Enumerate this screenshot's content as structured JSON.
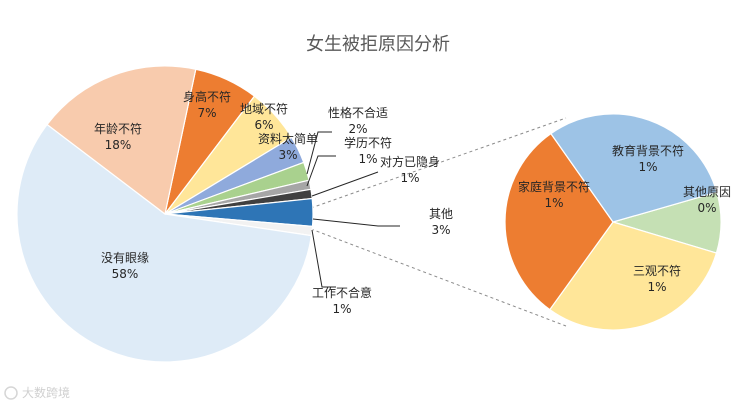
{
  "chart_data": {
    "type": "pie",
    "subtype": "bar-of-pie",
    "title": "女生被拒原因分析",
    "main_pie": {
      "slices": [
        {
          "label": "身高不符",
          "value": 7,
          "value_label": "7%",
          "color": "#ed7d31"
        },
        {
          "label": "地域不符",
          "value": 6,
          "value_label": "6%",
          "color": "#ffe699"
        },
        {
          "label": "资料太简单",
          "value": 3,
          "value_label": "3%",
          "color": "#8faadc"
        },
        {
          "label": "性格不合适",
          "value": 2,
          "value_label": "2%",
          "color": "#a9d18e"
        },
        {
          "label": "学历不符",
          "value": 1,
          "value_label": "1%",
          "color": "#a6a6a6"
        },
        {
          "label": "对方已隐身",
          "value": 1,
          "value_label": "1%",
          "color": "#404040"
        },
        {
          "label": "其他",
          "value": 3,
          "value_label": "3%",
          "color": "#2e75b6"
        },
        {
          "label": "工作不合意",
          "value": 1,
          "value_label": "1%",
          "color": "#f2f2f2"
        },
        {
          "label": "没有眼缘",
          "value": 58,
          "value_label": "58%",
          "color": "#deebf7"
        },
        {
          "label": "年龄不符",
          "value": 18,
          "value_label": "18%",
          "color": "#f8cbad"
        }
      ]
    },
    "secondary_pie": {
      "slices": [
        {
          "label": "其他原因",
          "value": 0.3,
          "value_label": "0%",
          "color": "#c5e0b4"
        },
        {
          "label": "三观不符",
          "value": 1,
          "value_label": "1%",
          "color": "#ffe699"
        },
        {
          "label": "家庭背景不符",
          "value": 1,
          "value_label": "1%",
          "color": "#ed7d31"
        },
        {
          "label": "教育背景不符",
          "value": 1,
          "value_label": "1%",
          "color": "#9dc3e6"
        }
      ]
    }
  },
  "watermark": "大数跨境"
}
